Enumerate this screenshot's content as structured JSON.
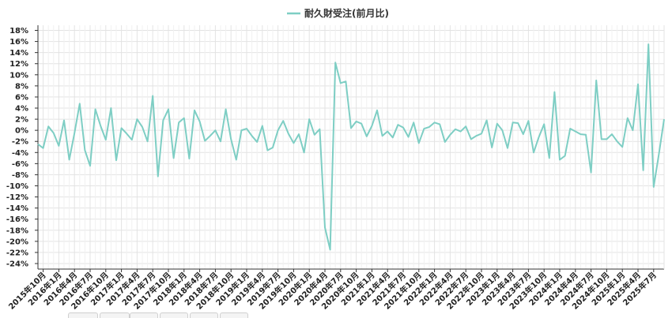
{
  "chart_data": {
    "type": "line",
    "legend": {
      "label": "耐久財受注(前月比)",
      "position": "top-center"
    },
    "grid": true,
    "y_ticks": [
      "18%",
      "16%",
      "14%",
      "12%",
      "10%",
      "8%",
      "6%",
      "4%",
      "2%",
      "0%",
      "-2%",
      "-4%",
      "-6%",
      "-8%",
      "-10%",
      "-12%",
      "-14%",
      "-16%",
      "-18%",
      "-20%",
      "-22%",
      "-24%"
    ],
    "ylim": [
      -24,
      18
    ],
    "x_tick_labels": [
      "2015年10月",
      "2016年1月",
      "2016年4月",
      "2016年7月",
      "2016年10月",
      "2017年1月",
      "2017年4月",
      "2017年7月",
      "2017年10月",
      "2018年1月",
      "2018年4月",
      "2018年7月",
      "2018年10月",
      "2019年1月",
      "2019年4月",
      "2019年7月",
      "2019年10月",
      "2020年1月",
      "2020年4月",
      "2020年7月",
      "2020年10月",
      "2021年1月",
      "2021年4月",
      "2021年7月",
      "2021年10月",
      "2022年1月",
      "2022年4月",
      "2022年7月",
      "2022年10月",
      "2023年1月",
      "2023年4月",
      "2023年7月",
      "2023年10月",
      "2024年1月",
      "2024年4月",
      "2024年7月",
      "2024年10月",
      "2025年1月",
      "2025年4月",
      "2025年7月"
    ],
    "series": [
      {
        "name": "耐久財受注(前月比)",
        "color": "#7ecec4",
        "start": "2015年9月",
        "values": [
          -2.5,
          -3.2,
          0.7,
          -0.5,
          -2.8,
          1.8,
          -5.3,
          -0.5,
          4.8,
          -3.6,
          -6.4,
          3.8,
          0.8,
          -1.7,
          4.0,
          -5.4,
          0.4,
          -0.6,
          -1.7,
          2.0,
          0.6,
          -2.0,
          6.2,
          -8.3,
          1.8,
          3.8,
          -5.0,
          1.4,
          2.2,
          -5.1,
          3.6,
          1.6,
          -1.9,
          -1.0,
          0.0,
          -2.0,
          3.8,
          -1.6,
          -5.3,
          0.0,
          0.3,
          -1.0,
          -2.1,
          0.8,
          -3.6,
          -3.1,
          0.0,
          1.7,
          -0.6,
          -2.3,
          -0.7,
          -4.0,
          2.0,
          -0.8,
          0.2,
          -17.5,
          -21.5,
          12.2,
          8.5,
          8.8,
          0.4,
          1.6,
          1.2,
          -1.1,
          0.8,
          3.6,
          -1.0,
          -0.2,
          -1.3,
          1.0,
          0.5,
          -1.2,
          1.4,
          -2.3,
          0.3,
          0.6,
          1.4,
          1.1,
          -2.1,
          -0.8,
          0.2,
          -0.2,
          0.7,
          -1.6,
          -1.0,
          -0.6,
          1.8,
          -3.1,
          1.2,
          0.0,
          -3.2,
          1.4,
          1.3,
          -0.7,
          1.7,
          -4.0,
          -1.2,
          1.1,
          -5.0,
          6.9,
          -5.3,
          -4.6,
          0.3,
          -0.2,
          -0.7,
          -0.8,
          -7.6,
          9.0,
          -1.6,
          -1.6,
          -0.7,
          -2.0,
          -3.0,
          2.2,
          0.0,
          8.3,
          -7.2,
          15.5,
          -10.2,
          -4.3,
          2.0
        ]
      }
    ]
  }
}
